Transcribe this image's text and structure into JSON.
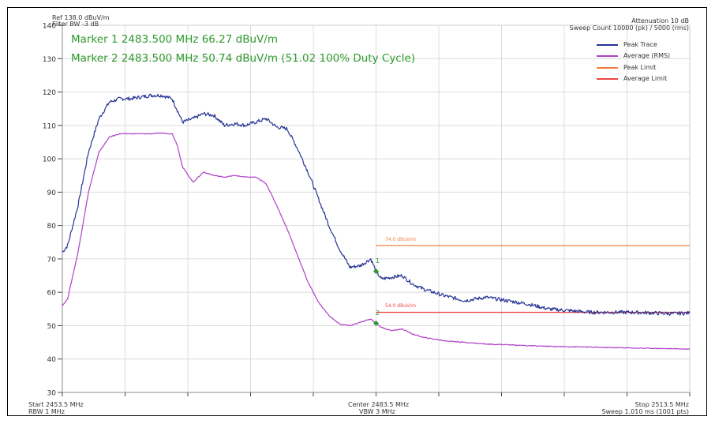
{
  "header": {
    "ref_level": "Ref 138.0 dBuV/m",
    "filter_bw": "Filter BW -3 dB",
    "attenuation": "Attenuation 10 dB",
    "sweep_count": "Sweep Count 10000 (pk) / 5000 (rms)"
  },
  "markers": {
    "marker1": "Marker 1 2483.500 MHz 66.27 dBuV/m",
    "marker2": "Marker 2 2483.500 MHz 50.74 dBuV/m (51.02 100% Duty Cycle)",
    "m1_label": "1",
    "m2_label": "2"
  },
  "limits": {
    "peak_label": "74.0 dBuV/m",
    "avg_label": "54.0 dBuV/m"
  },
  "footer": {
    "start": "Start 2453.5 MHz",
    "rbw": "RBW 1 MHz",
    "center": "Center 2483.5 MHz",
    "vbw": "VBW 3 MHz",
    "stop": "Stop 2513.5 MHz",
    "sweep": "Sweep 1.010 ms (1001 pts)"
  },
  "colors": {
    "peak": "#283593",
    "average": "#b040c8",
    "peak_limit": "#f08040",
    "avg_limit": "#ee4444",
    "marker": "#2e9a2e",
    "grid": "#dcdcdc"
  },
  "chart_data": {
    "type": "line",
    "xlim": [
      2453.5,
      2513.5
    ],
    "ylim": [
      30,
      140
    ],
    "yticks": [
      30,
      40,
      50,
      60,
      70,
      80,
      90,
      100,
      110,
      120,
      130,
      140
    ],
    "legend_position": "top-right",
    "grid": true,
    "series": [
      {
        "name": "Peak Trace",
        "x": [
          2453.5,
          2454.0,
          2455.0,
          2456.0,
          2457.0,
          2458.0,
          2459.0,
          2460.0,
          2461.0,
          2462.0,
          2463.0,
          2464.0,
          2465.0,
          2466.0,
          2467.0,
          2468.0,
          2469.0,
          2470.0,
          2471.0,
          2472.0,
          2473.0,
          2474.0,
          2475.0,
          2476.0,
          2477.0,
          2478.0,
          2479.0,
          2480.0,
          2481.0,
          2482.0,
          2483.0,
          2483.5,
          2484.0,
          2485.0,
          2486.0,
          2487.0,
          2488.0,
          2490.0,
          2492.0,
          2494.0,
          2496.0,
          2498.0,
          2500.0,
          2502.0,
          2504.0,
          2506.0,
          2508.0,
          2510.0,
          2512.0,
          2513.5
        ],
        "values": [
          72,
          74,
          86,
          102,
          112,
          117,
          118,
          118,
          118.5,
          119,
          119,
          118,
          111,
          112,
          113.5,
          113,
          110,
          110.5,
          110,
          111,
          112,
          109.5,
          109,
          103,
          96,
          88,
          80,
          73,
          67.5,
          68,
          70,
          66.3,
          64,
          64.5,
          65,
          62.5,
          61,
          59,
          57.5,
          58.5,
          57.5,
          56.5,
          55,
          54.5,
          54,
          54,
          54,
          53.8,
          53.6,
          53.8
        ]
      },
      {
        "name": "Average (RMS)",
        "x": [
          2453.5,
          2454.0,
          2455.0,
          2456.0,
          2457.0,
          2458.0,
          2459.0,
          2460.0,
          2461.0,
          2462.0,
          2463.0,
          2464.0,
          2464.5,
          2465.0,
          2466.0,
          2467.0,
          2468.0,
          2469.0,
          2470.0,
          2471.0,
          2472.0,
          2473.0,
          2474.0,
          2475.0,
          2476.0,
          2477.0,
          2478.0,
          2479.0,
          2480.0,
          2481.0,
          2482.0,
          2483.0,
          2483.5,
          2484.0,
          2485.0,
          2486.0,
          2487.0,
          2488.0,
          2490.0,
          2492.0,
          2494.0,
          2496.0,
          2498.0,
          2500.0,
          2505.0,
          2510.0,
          2513.5
        ],
        "values": [
          56,
          58,
          72,
          90,
          102,
          106.5,
          107.5,
          107.5,
          107.5,
          107.5,
          107.7,
          107.5,
          104,
          97.5,
          93,
          96,
          95,
          94.5,
          95,
          94.5,
          94.5,
          92.5,
          86,
          79,
          71,
          63,
          57,
          53,
          50.5,
          50,
          51,
          52,
          50.7,
          49.5,
          48.5,
          49,
          47.5,
          46.5,
          45.5,
          45,
          44.5,
          44.3,
          44,
          43.8,
          43.5,
          43.2,
          43
        ]
      }
    ],
    "limits": [
      {
        "name": "Peak Limit",
        "value": 74.0,
        "x_start": 2483.5,
        "x_end": 2513.5
      },
      {
        "name": "Average Limit",
        "value": 54.0,
        "x_start": 2483.5,
        "x_end": 2513.5
      }
    ],
    "markers": [
      {
        "label": "1",
        "x": 2483.5,
        "y": 66.27
      },
      {
        "label": "2",
        "x": 2483.5,
        "y": 50.74
      }
    ]
  }
}
